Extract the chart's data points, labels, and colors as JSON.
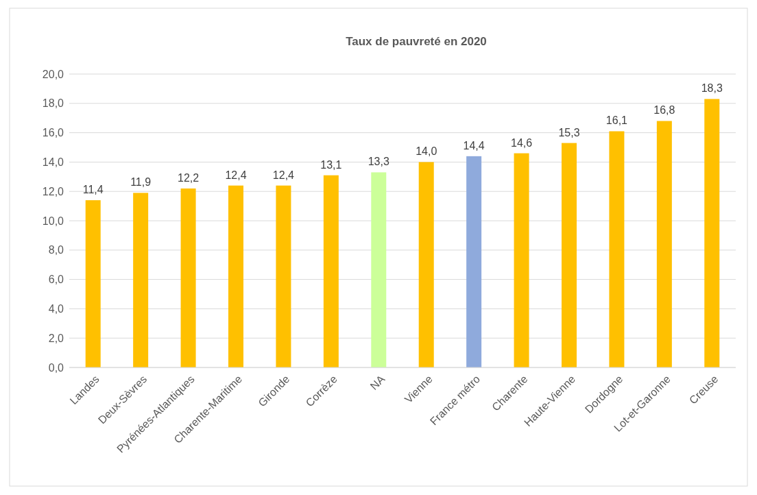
{
  "chart_data": {
    "type": "bar",
    "title": "Taux de pauvreté en 2020",
    "categories": [
      "Landes",
      "Deux-Sèvres",
      "Pyrénées-Atlantiques",
      "Charente-Maritime",
      "Gironde",
      "Corrèze",
      "NA",
      "Vienne",
      "France métro",
      "Charente",
      "Haute-Vienne",
      "Dordogne",
      "Lot-et-Garonne",
      "Creuse"
    ],
    "values": [
      11.4,
      11.9,
      12.2,
      12.4,
      12.4,
      13.1,
      13.3,
      14.0,
      14.4,
      14.6,
      15.3,
      16.1,
      16.8,
      18.3
    ],
    "colors": [
      "#ffc000",
      "#ffc000",
      "#ffc000",
      "#ffc000",
      "#ffc000",
      "#ffc000",
      "#ccff99",
      "#ffc000",
      "#8faadc",
      "#ffc000",
      "#ffc000",
      "#ffc000",
      "#ffc000",
      "#ffc000"
    ],
    "value_labels": [
      "11,4",
      "11,9",
      "12,2",
      "12,4",
      "12,4",
      "13,1",
      "13,3",
      "14,0",
      "14,4",
      "14,6",
      "15,3",
      "16,1",
      "16,8",
      "18,3"
    ],
    "ylim": [
      0,
      20
    ],
    "yticks": [
      {
        "value": 0,
        "label": "0,0"
      },
      {
        "value": 2,
        "label": "2,0"
      },
      {
        "value": 4,
        "label": "4,0"
      },
      {
        "value": 6,
        "label": "6,0"
      },
      {
        "value": 8,
        "label": "8,0"
      },
      {
        "value": 10,
        "label": "10,0"
      },
      {
        "value": 12,
        "label": "12,0"
      },
      {
        "value": 14,
        "label": "14,0"
      },
      {
        "value": 16,
        "label": "16,0"
      },
      {
        "value": 18,
        "label": "18,0"
      },
      {
        "value": 20,
        "label": "20,0"
      }
    ],
    "grid": "y"
  }
}
